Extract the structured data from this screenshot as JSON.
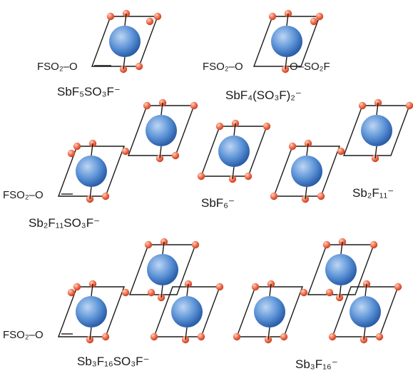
{
  "colors": {
    "bond_line": "#1a1a1a",
    "antimony_light": "#bcd6f4",
    "antimony_mid": "#5b92d6",
    "antimony_dark": "#2a5da8",
    "fluorine_light": "#ffd0bf",
    "fluorine_mid": "#f07250",
    "fluorine_dark": "#c83c20"
  },
  "groups": [
    {
      "id": "g1",
      "formula": "SbF₅SO₃F⁻",
      "substituents": [
        "FSO₂–O"
      ]
    },
    {
      "id": "g2",
      "formula": "SbF₄(SO₃F)₂⁻",
      "substituents": [
        "FSO₂–O",
        "O–SO₂F"
      ]
    },
    {
      "id": "g3",
      "formula": "Sb₂F₁₁SO₃F⁻",
      "substituents": [
        "FSO₂–O"
      ]
    },
    {
      "id": "g4",
      "formula": "SbF₆⁻",
      "substituents": []
    },
    {
      "id": "g5",
      "formula": "Sb₂F₁₁⁻",
      "substituents": []
    },
    {
      "id": "g6",
      "formula": "Sb₃F₁₆SO₃F⁻",
      "substituents": [
        "FSO₂–O"
      ]
    },
    {
      "id": "g7",
      "formula": "Sb₃F₁₆⁻",
      "substituents": []
    }
  ]
}
